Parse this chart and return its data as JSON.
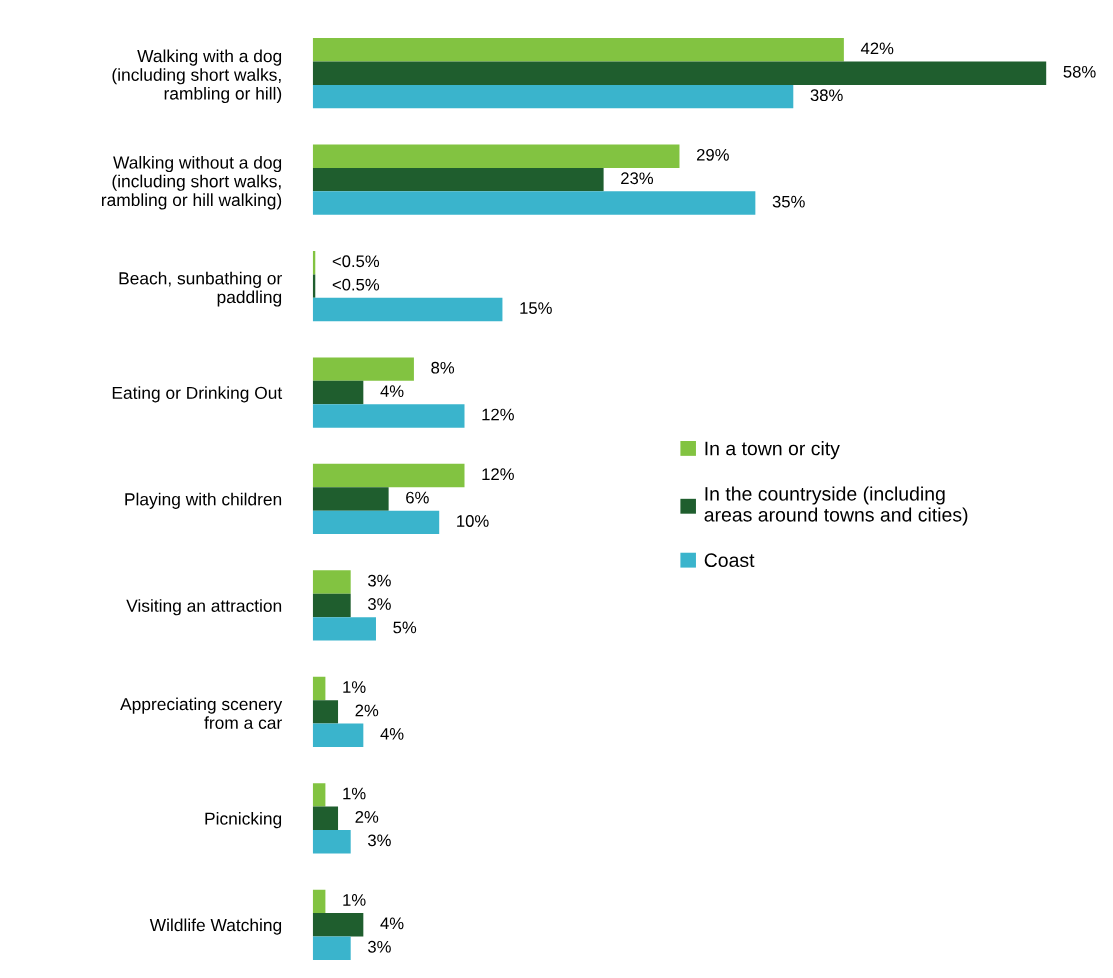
{
  "chart_data": {
    "type": "bar",
    "orientation": "horizontal",
    "legend": "right",
    "grid": false,
    "categories": [
      "Walking with a dog\n(including short walks,\nrambling or hill)",
      "Walking without a dog\n(including short walks,\nrambling or hill walking)",
      "Beach, sunbathing or\npaddling",
      "Eating or Drinking Out",
      "Playing with children",
      "Visiting an attraction",
      "Appreciating scenery\nfrom a car",
      "Picnicking",
      "Wildlife Watching"
    ],
    "series": [
      {
        "name": "In a town or city",
        "color": "#82c341",
        "values": [
          42,
          29,
          0.2,
          8,
          12,
          3,
          1,
          1,
          1
        ],
        "value_labels": [
          "42%",
          "29%",
          "<0.5%",
          "8%",
          "12%",
          "3%",
          "1%",
          "1%",
          "1%"
        ]
      },
      {
        "name": "In the countryside (including\nareas around towns and cities)",
        "color": "#1f5e2e",
        "values": [
          58,
          23,
          0.2,
          4,
          6,
          3,
          2,
          2,
          4
        ],
        "value_labels": [
          "58%",
          "23%",
          "<0.5%",
          "4%",
          "6%",
          "3%",
          "2%",
          "2%",
          "4%"
        ]
      },
      {
        "name": "Coast",
        "color": "#3ab4cc",
        "values": [
          38,
          35,
          15,
          12,
          10,
          5,
          4,
          3,
          3
        ],
        "value_labels": [
          "38%",
          "35%",
          "15%",
          "12%",
          "10%",
          "5%",
          "4%",
          "3%",
          "3%"
        ]
      }
    ]
  }
}
